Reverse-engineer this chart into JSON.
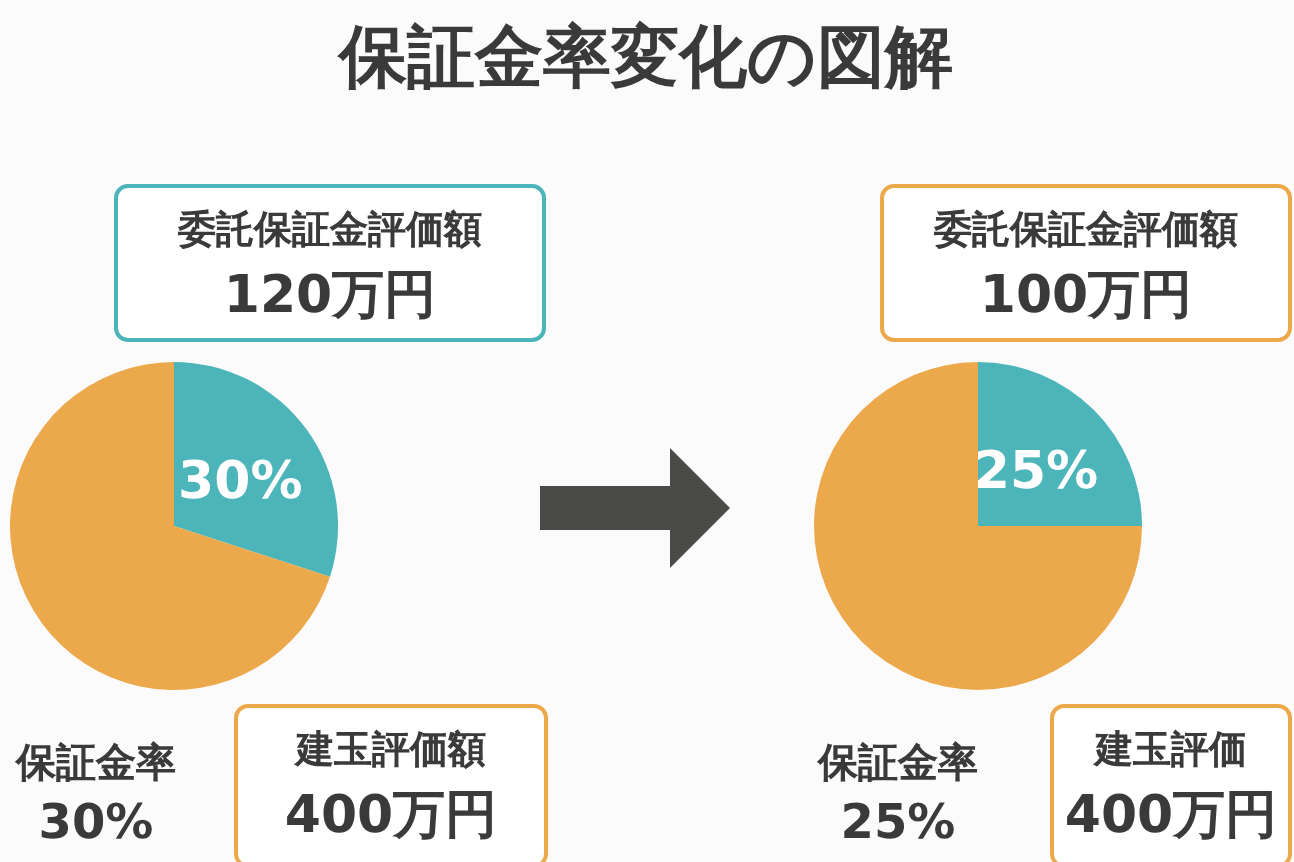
{
  "chart_data": [
    {
      "type": "pie",
      "title": "保証金率変化の図解",
      "categories": [
        null,
        null
      ],
      "values": [
        30,
        70
      ],
      "colors": [
        "#4bb5b9",
        "#eba94c"
      ],
      "value_labels": [
        "30%",
        null
      ],
      "annotations": [
        "委託保証金評価額",
        "120万円",
        "保証金率",
        "30%",
        "建玉評価額",
        "400万円"
      ]
    },
    {
      "type": "pie",
      "categories": [
        null,
        null
      ],
      "values": [
        25,
        75
      ],
      "colors": [
        "#4bb5b9",
        "#eba94c"
      ],
      "value_labels": [
        "25%",
        null
      ],
      "annotations": [
        "委託保証金評価額",
        "100万円",
        "保証金率",
        "25%",
        "建玉評価",
        "400万円"
      ]
    }
  ]
}
